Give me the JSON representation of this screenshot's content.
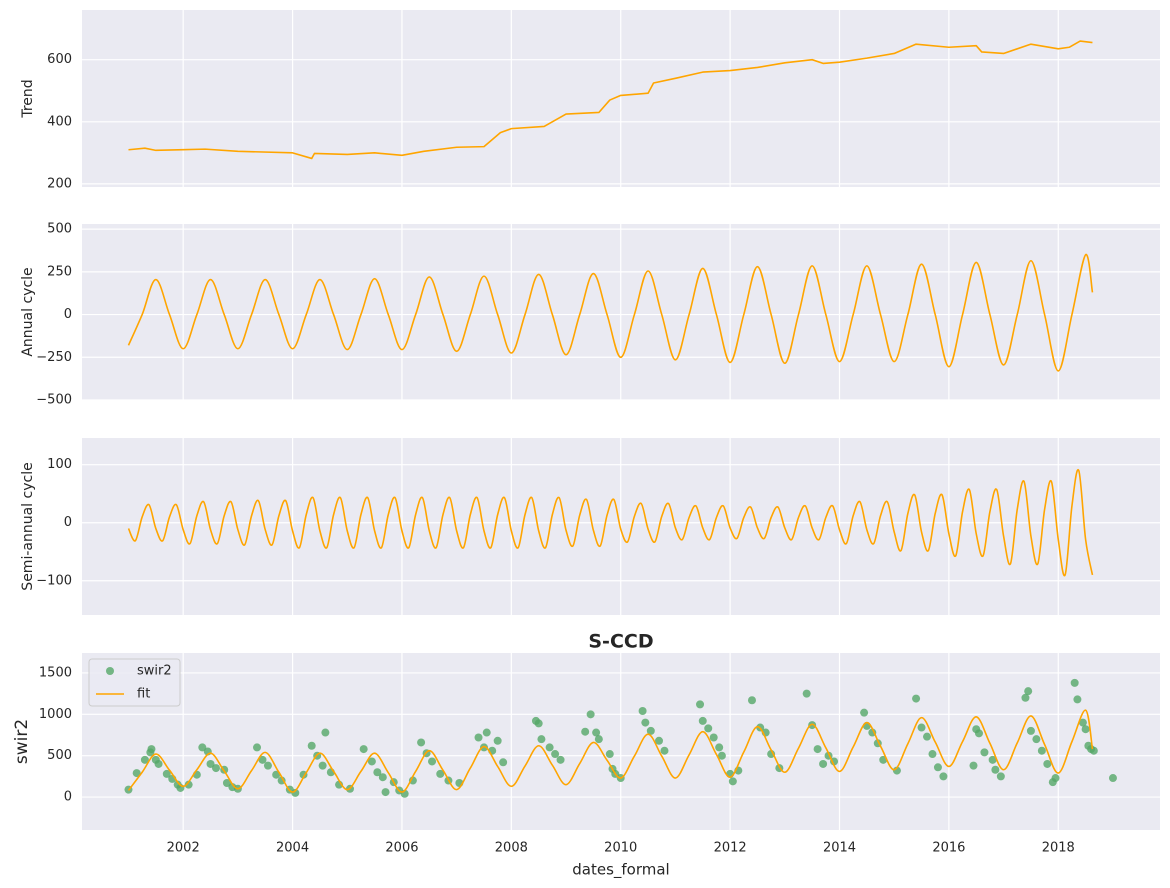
{
  "chart_data": [
    {
      "type": "line",
      "ylabel": "Trend",
      "color": "#ffa500",
      "xlim": [
        2000.15,
        2019.86
      ],
      "xticks": [
        2002,
        2004,
        2006,
        2008,
        2010,
        2012,
        2014,
        2016,
        2018
      ],
      "ylim": [
        190,
        760
      ],
      "yticks": [
        200,
        400,
        600
      ],
      "grid": true,
      "smooth": false,
      "x": [
        2001,
        2001.3,
        2001.5,
        2002,
        2002.4,
        2003,
        2004,
        2004.35,
        2004.4,
        2005,
        2005.5,
        2006,
        2006.4,
        2007,
        2007.5,
        2007.8,
        2008,
        2008.6,
        2009,
        2009.6,
        2009.8,
        2010,
        2010.5,
        2010.6,
        2011,
        2011.5,
        2012,
        2012.5,
        2013,
        2013.5,
        2013.7,
        2014,
        2014.5,
        2015,
        2015.4,
        2016,
        2016.5,
        2016.6,
        2017,
        2017.5,
        2018,
        2018.2,
        2018.4,
        2018.625
      ],
      "values": [
        310,
        315,
        308,
        310,
        312,
        305,
        300,
        282,
        298,
        295,
        300,
        292,
        305,
        318,
        320,
        365,
        378,
        385,
        425,
        430,
        470,
        485,
        492,
        525,
        540,
        560,
        565,
        575,
        590,
        600,
        588,
        592,
        605,
        620,
        650,
        640,
        645,
        625,
        620,
        650,
        635,
        640,
        660,
        655
      ]
    },
    {
      "type": "line",
      "ylabel": "Annual cycle",
      "color": "#ffa500",
      "xlim": [
        2000.15,
        2019.86
      ],
      "xticks": [
        2002,
        2004,
        2006,
        2008,
        2010,
        2012,
        2014,
        2016,
        2018
      ],
      "ylim": [
        -500,
        530
      ],
      "yticks": [
        {
          "value": -500,
          "label": "−500"
        },
        {
          "value": -250,
          "label": "−250"
        },
        0,
        250,
        500
      ],
      "grid": true,
      "smooth": true,
      "x": [
        2001,
        2001.25,
        2001.5,
        2001.75,
        2002,
        2002.25,
        2002.5,
        2002.75,
        2003,
        2003.25,
        2003.5,
        2003.75,
        2004,
        2004.25,
        2004.5,
        2004.75,
        2005,
        2005.25,
        2005.5,
        2005.75,
        2006,
        2006.25,
        2006.5,
        2006.75,
        2007,
        2007.25,
        2007.5,
        2007.75,
        2008,
        2008.25,
        2008.5,
        2008.75,
        2009,
        2009.25,
        2009.5,
        2009.75,
        2010,
        2010.25,
        2010.5,
        2010.75,
        2011,
        2011.25,
        2011.5,
        2011.75,
        2012,
        2012.25,
        2012.5,
        2012.75,
        2013,
        2013.25,
        2013.5,
        2013.75,
        2014,
        2014.25,
        2014.5,
        2014.75,
        2015,
        2015.25,
        2015.5,
        2015.75,
        2016,
        2016.25,
        2016.5,
        2016.75,
        2017,
        2017.25,
        2017.5,
        2017.75,
        2018,
        2018.25,
        2018.5,
        2018.625
      ],
      "values": [
        -180,
        0,
        205,
        0,
        -200,
        0,
        205,
        0,
        -200,
        0,
        205,
        0,
        -200,
        0,
        205,
        0,
        -205,
        0,
        210,
        0,
        -205,
        0,
        220,
        0,
        -215,
        0,
        225,
        0,
        -225,
        0,
        235,
        0,
        -235,
        0,
        240,
        0,
        -250,
        0,
        255,
        0,
        -265,
        0,
        270,
        0,
        -280,
        0,
        280,
        0,
        -285,
        0,
        285,
        0,
        -275,
        0,
        285,
        0,
        -275,
        0,
        295,
        0,
        -305,
        0,
        305,
        0,
        -295,
        0,
        315,
        0,
        -330,
        0,
        350,
        130
      ]
    },
    {
      "type": "line",
      "ylabel": "Semi-annual cycle",
      "color": "#ffa500",
      "xlim": [
        2000.15,
        2019.86
      ],
      "xticks": [
        2002,
        2004,
        2006,
        2008,
        2010,
        2012,
        2014,
        2016,
        2018
      ],
      "ylim": [
        -159,
        146
      ],
      "yticks": [
        {
          "value": -100,
          "label": "−100"
        },
        0,
        100
      ],
      "grid": true,
      "smooth": true,
      "x": [
        2001,
        2001.125,
        2001.25,
        2001.375,
        2001.5,
        2001.625,
        2001.75,
        2001.875,
        2002,
        2002.125,
        2002.25,
        2002.375,
        2002.5,
        2002.625,
        2002.75,
        2002.875,
        2003,
        2003.125,
        2003.25,
        2003.375,
        2003.5,
        2003.625,
        2003.75,
        2003.875,
        2004,
        2004.125,
        2004.25,
        2004.375,
        2004.5,
        2004.625,
        2004.75,
        2004.875,
        2005,
        2005.125,
        2005.25,
        2005.375,
        2005.5,
        2005.625,
        2005.75,
        2005.875,
        2006,
        2006.125,
        2006.25,
        2006.375,
        2006.5,
        2006.625,
        2006.75,
        2006.875,
        2007,
        2007.125,
        2007.25,
        2007.375,
        2007.5,
        2007.625,
        2007.75,
        2007.875,
        2008,
        2008.125,
        2008.25,
        2008.375,
        2008.5,
        2008.625,
        2008.75,
        2008.875,
        2009,
        2009.125,
        2009.25,
        2009.375,
        2009.5,
        2009.625,
        2009.75,
        2009.875,
        2010,
        2010.125,
        2010.25,
        2010.375,
        2010.5,
        2010.625,
        2010.75,
        2010.875,
        2011,
        2011.125,
        2011.25,
        2011.375,
        2011.5,
        2011.625,
        2011.75,
        2011.875,
        2012,
        2012.125,
        2012.25,
        2012.375,
        2012.5,
        2012.625,
        2012.75,
        2012.875,
        2013,
        2013.125,
        2013.25,
        2013.375,
        2013.5,
        2013.625,
        2013.75,
        2013.875,
        2014,
        2014.125,
        2014.25,
        2014.375,
        2014.5,
        2014.625,
        2014.75,
        2014.875,
        2015,
        2015.125,
        2015.25,
        2015.375,
        2015.5,
        2015.625,
        2015.75,
        2015.875,
        2016,
        2016.125,
        2016.25,
        2016.375,
        2016.5,
        2016.625,
        2016.75,
        2016.875,
        2017,
        2017.125,
        2017.25,
        2017.375,
        2017.5,
        2017.625,
        2017.75,
        2017.875,
        2018,
        2018.125,
        2018.25,
        2018.375,
        2018.5,
        2018.625
      ],
      "values": [
        -10,
        -31,
        10,
        31,
        -10,
        -31,
        10,
        31,
        -12,
        -36,
        12,
        36,
        -12,
        -36,
        12,
        36,
        -12,
        -38,
        12,
        38,
        -12,
        -38,
        12,
        38,
        -14,
        -43,
        14,
        43,
        -14,
        -43,
        14,
        43,
        -14,
        -43,
        14,
        43,
        -14,
        -43,
        14,
        43,
        -14,
        -43,
        14,
        43,
        -14,
        -43,
        14,
        43,
        -14,
        -43,
        14,
        43,
        -14,
        -43,
        14,
        43,
        -14,
        -43,
        14,
        43,
        -14,
        -43,
        14,
        43,
        -13,
        -40,
        13,
        40,
        -13,
        -40,
        13,
        40,
        -11,
        -33,
        11,
        33,
        -11,
        -33,
        11,
        33,
        -9,
        -29,
        9,
        29,
        -9,
        -29,
        9,
        29,
        -9,
        -27,
        9,
        27,
        -9,
        -27,
        9,
        27,
        -9,
        -29,
        9,
        29,
        -9,
        -29,
        9,
        29,
        -12,
        -36,
        12,
        36,
        -12,
        -36,
        12,
        36,
        -16,
        -48,
        16,
        48,
        -16,
        -48,
        16,
        48,
        -19,
        -57,
        19,
        57,
        -19,
        -57,
        19,
        57,
        -23,
        -71,
        23,
        71,
        -23,
        -71,
        23,
        71,
        -29,
        -90,
        29,
        90,
        -29,
        -90
      ]
    },
    {
      "type": "combo",
      "title": "S-CCD",
      "ylabel": "swir2",
      "xlabel": "dates_formal",
      "legend": "upper left",
      "xlim": [
        2000.15,
        2019.86
      ],
      "xticks": [
        2002,
        2004,
        2006,
        2008,
        2010,
        2012,
        2014,
        2016,
        2018
      ],
      "ylim": [
        -398,
        1741
      ],
      "yticks": [
        0,
        500,
        1000,
        1500
      ],
      "grid": true,
      "series": [
        {
          "name": "swir2",
          "type": "scatter",
          "color": "#55a868",
          "x": [
            2001.0,
            2001.15,
            2001.3,
            2001.4,
            2001.42,
            2001.5,
            2001.55,
            2001.7,
            2001.8,
            2001.9,
            2001.95,
            2002.1,
            2002.25,
            2002.35,
            2002.45,
            2002.5,
            2002.6,
            2002.75,
            2002.8,
            2002.9,
            2003.0,
            2003.35,
            2003.45,
            2003.55,
            2003.7,
            2003.8,
            2003.95,
            2004.05,
            2004.2,
            2004.35,
            2004.45,
            2004.55,
            2004.6,
            2004.7,
            2004.85,
            2005.05,
            2005.3,
            2005.45,
            2005.55,
            2005.65,
            2005.7,
            2005.85,
            2005.95,
            2006.05,
            2006.2,
            2006.35,
            2006.45,
            2006.55,
            2006.7,
            2006.85,
            2007.05,
            2007.4,
            2007.5,
            2007.55,
            2007.65,
            2007.75,
            2007.85,
            2008.45,
            2008.5,
            2008.55,
            2008.7,
            2008.8,
            2008.9,
            2009.35,
            2009.45,
            2009.55,
            2009.6,
            2009.8,
            2009.85,
            2009.9,
            2010.0,
            2010.4,
            2010.45,
            2010.55,
            2010.7,
            2010.8,
            2011.45,
            2011.5,
            2011.6,
            2011.7,
            2011.8,
            2011.85,
            2012.0,
            2012.05,
            2012.15,
            2012.4,
            2012.55,
            2012.65,
            2012.75,
            2012.9,
            2013.4,
            2013.5,
            2013.6,
            2013.7,
            2013.8,
            2013.9,
            2014.45,
            2014.5,
            2014.6,
            2014.7,
            2014.8,
            2015.05,
            2015.4,
            2015.5,
            2015.6,
            2015.7,
            2015.8,
            2015.9,
            2016.45,
            2016.5,
            2016.55,
            2016.65,
            2016.8,
            2016.85,
            2016.95,
            2017.4,
            2017.45,
            2017.5,
            2017.6,
            2017.7,
            2017.8,
            2017.9,
            2017.95,
            2018.3,
            2018.35,
            2018.45,
            2018.5,
            2018.55,
            2018.6,
            2018.65,
            2019.0
          ],
          "values": [
            90,
            290,
            450,
            540,
            580,
            450,
            400,
            280,
            220,
            150,
            110,
            150,
            270,
            600,
            550,
            400,
            350,
            330,
            170,
            120,
            100,
            600,
            450,
            380,
            270,
            200,
            90,
            50,
            270,
            620,
            500,
            380,
            780,
            300,
            150,
            100,
            580,
            430,
            300,
            240,
            60,
            180,
            80,
            40,
            200,
            660,
            530,
            430,
            280,
            200,
            170,
            720,
            600,
            780,
            560,
            680,
            420,
            920,
            890,
            700,
            600,
            520,
            450,
            790,
            1000,
            780,
            700,
            520,
            340,
            280,
            230,
            1040,
            900,
            800,
            680,
            560,
            1120,
            920,
            830,
            720,
            600,
            500,
            280,
            190,
            320,
            1170,
            840,
            780,
            520,
            350,
            1250,
            870,
            580,
            400,
            500,
            430,
            1020,
            860,
            780,
            650,
            450,
            320,
            1190,
            840,
            730,
            520,
            360,
            250,
            380,
            820,
            770,
            540,
            450,
            330,
            250,
            1200,
            1280,
            800,
            700,
            560,
            400,
            180,
            230,
            1380,
            1180,
            900,
            820,
            620,
            580,
            560,
            230
          ]
        },
        {
          "name": "fit",
          "type": "line",
          "color": "#ffa500",
          "x": [
            2001,
            2001.25,
            2001.5,
            2001.75,
            2002,
            2002.25,
            2002.5,
            2002.75,
            2003,
            2003.25,
            2003.5,
            2003.75,
            2004,
            2004.25,
            2004.5,
            2004.75,
            2005,
            2005.25,
            2005.5,
            2005.75,
            2006,
            2006.25,
            2006.5,
            2006.75,
            2007,
            2007.25,
            2007.5,
            2007.75,
            2008,
            2008.25,
            2008.5,
            2008.75,
            2009,
            2009.25,
            2009.5,
            2009.75,
            2010,
            2010.25,
            2010.5,
            2010.75,
            2011,
            2011.25,
            2011.5,
            2011.75,
            2012,
            2012.25,
            2012.5,
            2012.75,
            2013,
            2013.25,
            2013.5,
            2013.75,
            2014,
            2014.25,
            2014.5,
            2014.75,
            2015,
            2015.25,
            2015.5,
            2015.75,
            2016,
            2016.25,
            2016.5,
            2016.75,
            2017,
            2017.25,
            2017.5,
            2017.75,
            2018,
            2018.25,
            2018.5,
            2018.625
          ],
          "values": [
            80,
            300,
            520,
            325,
            130,
            330,
            530,
            315,
            100,
            320,
            540,
            300,
            60,
            295,
            530,
            310,
            90,
            310,
            530,
            295,
            60,
            310,
            560,
            325,
            90,
            350,
            610,
            370,
            130,
            375,
            620,
            385,
            150,
            405,
            660,
            445,
            230,
            495,
            760,
            495,
            230,
            510,
            790,
            515,
            240,
            545,
            850,
            570,
            300,
            590,
            880,
            595,
            310,
            605,
            900,
            615,
            330,
            645,
            960,
            665,
            370,
            670,
            970,
            650,
            330,
            655,
            980,
            635,
            290,
            670,
            1050,
            580
          ]
        }
      ]
    }
  ]
}
